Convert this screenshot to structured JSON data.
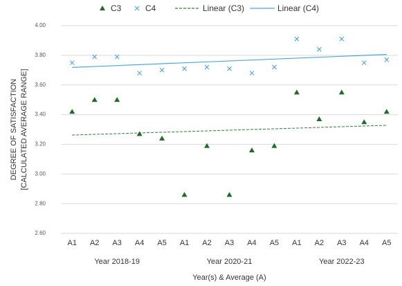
{
  "chart_data": {
    "type": "scatter",
    "categories": [
      "A1",
      "A2",
      "A3",
      "A4",
      "A5",
      "A1",
      "A2",
      "A3",
      "A4",
      "A5",
      "A1",
      "A2",
      "A3",
      "A4",
      "A5"
    ],
    "groups": [
      "Year 2018-19",
      "Year 2020-21",
      "Year 2022-23"
    ],
    "x_label": "Year(s) & Average (A)",
    "y_label": [
      "DEGREE OF SATISFACTION",
      "[CALCULATED AVERAGE RANGE]"
    ],
    "series": [
      {
        "name": "C3",
        "color": "#1e6b2a",
        "marker": "triangle",
        "values": [
          3.42,
          3.5,
          3.5,
          3.27,
          3.24,
          2.86,
          3.19,
          2.86,
          3.16,
          3.19,
          3.55,
          3.37,
          3.55,
          3.35,
          3.42
        ],
        "trendline": {
          "name": "Linear (C3)",
          "color": "#2e7d32",
          "style": "dashed"
        }
      },
      {
        "name": "C4",
        "color": "#3aa0d8",
        "marker": "x",
        "values": [
          3.75,
          3.79,
          3.79,
          3.68,
          3.7,
          3.71,
          3.72,
          3.71,
          3.68,
          3.72,
          3.91,
          3.84,
          3.91,
          3.75,
          3.77
        ],
        "trendline": {
          "name": "Linear (C4)",
          "color": "#4aa8d8",
          "style": "solid"
        }
      }
    ],
    "ylim": [
      2.6,
      4.0
    ],
    "yticks": [
      {
        "value": 2.6,
        "label": "2.60"
      },
      {
        "value": 2.8,
        "label": "2.80"
      },
      {
        "value": 3.0,
        "label": "3.00"
      },
      {
        "value": 3.2,
        "label": "3.20"
      },
      {
        "value": 3.4,
        "label": "3.40"
      },
      {
        "value": 3.6,
        "label": "3.60"
      },
      {
        "value": 3.8,
        "label": "3.80"
      },
      {
        "value": 4.0,
        "label": "4.00"
      }
    ],
    "grid": true
  }
}
